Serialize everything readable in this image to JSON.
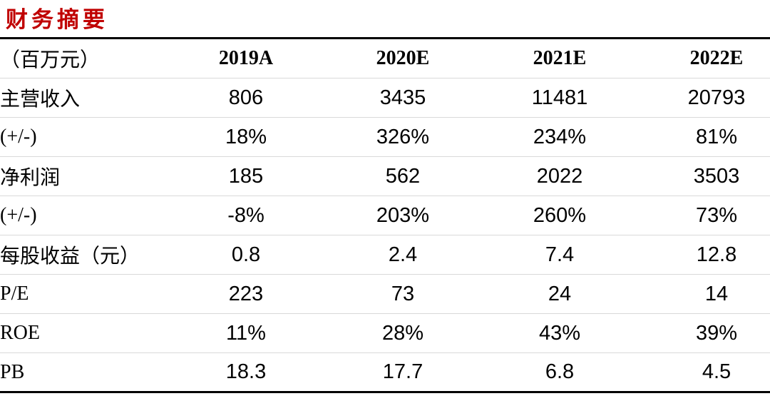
{
  "title": "财务摘要",
  "colors": {
    "title_red": "#C00000",
    "text": "#000000",
    "rule_heavy": "#000000",
    "rule_light": "#D9D9D9"
  },
  "table": {
    "unit_label": "（百万元）",
    "columns": [
      "2019A",
      "2020E",
      "2021E",
      "2022E"
    ],
    "rows": [
      {
        "label": "主营收入",
        "values": [
          "806",
          "3435",
          "11481",
          "20793"
        ]
      },
      {
        "label": "(+/-)",
        "values": [
          "18%",
          "326%",
          "234%",
          "81%"
        ]
      },
      {
        "label": "净利润",
        "values": [
          "185",
          "562",
          "2022",
          "3503"
        ]
      },
      {
        "label": "(+/-)",
        "values": [
          "-8%",
          "203%",
          "260%",
          "73%"
        ]
      },
      {
        "label": "每股收益（元）",
        "values": [
          "0.8",
          "2.4",
          "7.4",
          "12.8"
        ]
      },
      {
        "label": "P/E",
        "values": [
          "223",
          "73",
          "24",
          "14"
        ]
      },
      {
        "label": "ROE",
        "values": [
          "11%",
          "28%",
          "43%",
          "39%"
        ]
      },
      {
        "label": "PB",
        "values": [
          "18.3",
          "17.7",
          "6.8",
          "4.5"
        ]
      }
    ]
  },
  "chart_data": {
    "type": "table",
    "title": "财务摘要",
    "unit": "（百万元）",
    "categories": [
      "2019A",
      "2020E",
      "2021E",
      "2022E"
    ],
    "series": [
      {
        "name": "主营收入",
        "values": [
          806,
          3435,
          11481,
          20793
        ]
      },
      {
        "name": "主营收入(+/-)",
        "values": [
          "18%",
          "326%",
          "234%",
          "81%"
        ]
      },
      {
        "name": "净利润",
        "values": [
          185,
          562,
          2022,
          3503
        ]
      },
      {
        "name": "净利润(+/-)",
        "values": [
          "-8%",
          "203%",
          "260%",
          "73%"
        ]
      },
      {
        "name": "每股收益（元）",
        "values": [
          0.8,
          2.4,
          7.4,
          12.8
        ]
      },
      {
        "name": "P/E",
        "values": [
          223,
          73,
          24,
          14
        ]
      },
      {
        "name": "ROE",
        "values": [
          "11%",
          "28%",
          "43%",
          "39%"
        ]
      },
      {
        "name": "PB",
        "values": [
          18.3,
          17.7,
          6.8,
          4.5
        ]
      }
    ]
  }
}
